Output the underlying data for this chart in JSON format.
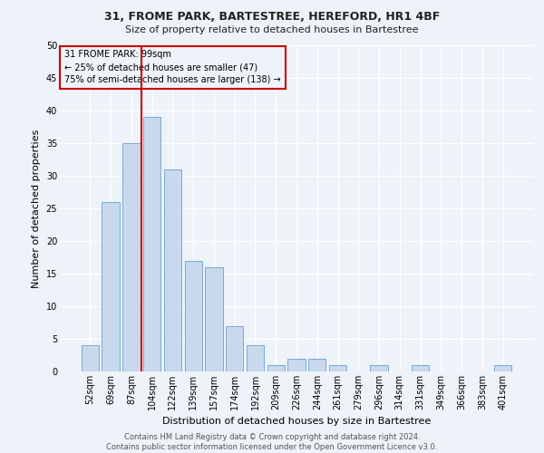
{
  "title1": "31, FROME PARK, BARTESTREE, HEREFORD, HR1 4BF",
  "title2": "Size of property relative to detached houses in Bartestree",
  "xlabel": "Distribution of detached houses by size in Bartestree",
  "ylabel": "Number of detached properties",
  "categories": [
    "52sqm",
    "69sqm",
    "87sqm",
    "104sqm",
    "122sqm",
    "139sqm",
    "157sqm",
    "174sqm",
    "192sqm",
    "209sqm",
    "226sqm",
    "244sqm",
    "261sqm",
    "279sqm",
    "296sqm",
    "314sqm",
    "331sqm",
    "349sqm",
    "366sqm",
    "383sqm",
    "401sqm"
  ],
  "values": [
    4,
    26,
    35,
    39,
    31,
    17,
    16,
    7,
    4,
    1,
    2,
    2,
    1,
    0,
    1,
    0,
    1,
    0,
    0,
    0,
    1
  ],
  "bar_color": "#c8d9ee",
  "bar_edge_color": "#7aaad0",
  "vline_color": "#cc0000",
  "vline_x_index": 3,
  "annotation_text": "31 FROME PARK: 99sqm\n← 25% of detached houses are smaller (47)\n75% of semi-detached houses are larger (138) →",
  "annotation_box_color": "#cc0000",
  "ylim": [
    0,
    50
  ],
  "yticks": [
    0,
    5,
    10,
    15,
    20,
    25,
    30,
    35,
    40,
    45,
    50
  ],
  "footer": "Contains HM Land Registry data © Crown copyright and database right 2024.\nContains public sector information licensed under the Open Government Licence v3.0.",
  "background_color": "#eef2f9",
  "grid_color": "#ffffff",
  "title1_fontsize": 9,
  "title2_fontsize": 8,
  "ylabel_fontsize": 8,
  "xlabel_fontsize": 8,
  "tick_fontsize": 7,
  "footer_fontsize": 6,
  "annotation_fontsize": 7
}
